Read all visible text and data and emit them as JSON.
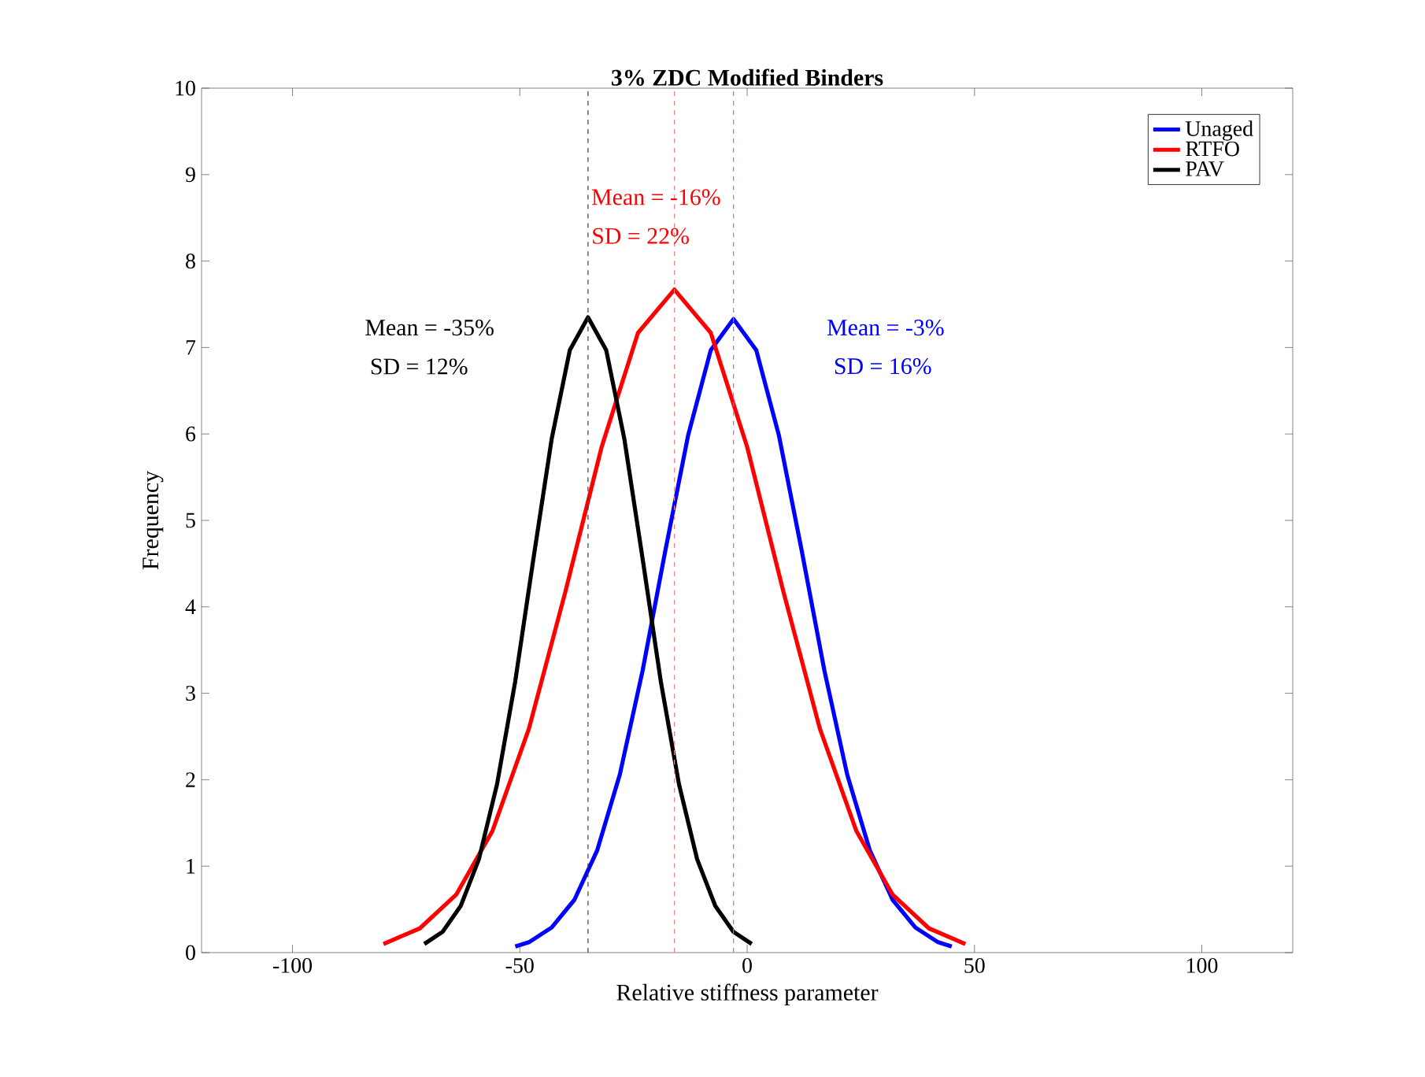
{
  "chart_data": {
    "type": "line",
    "title": "3% ZDC Modified Binders",
    "xlabel": "Relative stiffness parameter",
    "ylabel": "Frequency",
    "xlim": [
      -120,
      120
    ],
    "xticks": [
      -100,
      -50,
      0,
      50,
      100
    ],
    "ylim": [
      0,
      10
    ],
    "yticks": [
      0,
      1,
      2,
      3,
      4,
      5,
      6,
      7,
      8,
      9,
      10
    ],
    "grid": false,
    "legend": "top right",
    "marker": "none",
    "line_style": "solid",
    "series": [
      {
        "name": "Unaged",
        "color": "#0000ff",
        "x": [
          -51,
          -48,
          -43,
          -38,
          -33,
          -28,
          -23,
          -18,
          -13,
          -8,
          -3,
          2,
          7,
          12,
          17,
          22,
          27,
          32,
          37,
          42,
          45
        ],
        "values": [
          0.07,
          0.12,
          0.29,
          0.61,
          1.18,
          2.06,
          3.26,
          4.65,
          5.98,
          6.97,
          7.33,
          6.97,
          5.98,
          4.65,
          3.26,
          2.06,
          1.18,
          0.61,
          0.29,
          0.12,
          0.07
        ]
      },
      {
        "name": "RTFO",
        "color": "#ff0000",
        "x": [
          -80,
          -72,
          -64,
          -56,
          -48,
          -40,
          -32,
          -24,
          -16,
          -8,
          0,
          8,
          16,
          24,
          32,
          40,
          48
        ],
        "values": [
          0.1,
          0.28,
          0.67,
          1.41,
          2.59,
          4.17,
          5.85,
          7.17,
          7.67,
          7.17,
          5.85,
          4.17,
          2.59,
          1.41,
          0.67,
          0.28,
          0.1
        ]
      },
      {
        "name": "PAV",
        "color": "#000000",
        "x": [
          -71,
          -67,
          -63,
          -59,
          -55,
          -51,
          -47,
          -43,
          -39,
          -35,
          -31,
          -27,
          -23,
          -19,
          -15,
          -11,
          -7,
          -3,
          1
        ],
        "values": [
          0.1,
          0.24,
          0.54,
          1.08,
          1.95,
          3.14,
          4.56,
          5.94,
          6.97,
          7.35,
          6.97,
          5.94,
          4.56,
          3.14,
          1.95,
          1.08,
          0.54,
          0.24,
          0.1
        ]
      }
    ],
    "ref_lines": [
      {
        "axis": "x",
        "value": -3,
        "color": "#8080ff",
        "line_style": "dashed"
      },
      {
        "axis": "x",
        "value": -16,
        "color": "#ff8080",
        "line_style": "dashed"
      },
      {
        "axis": "x",
        "value": -35,
        "color": "#404040",
        "line_style": "dashed"
      }
    ],
    "annotations": [
      "Mean = -3%",
      "SD = 16%",
      "Mean = -16%",
      "SD = 22%",
      "Mean = -35%",
      "SD = 12%"
    ]
  }
}
